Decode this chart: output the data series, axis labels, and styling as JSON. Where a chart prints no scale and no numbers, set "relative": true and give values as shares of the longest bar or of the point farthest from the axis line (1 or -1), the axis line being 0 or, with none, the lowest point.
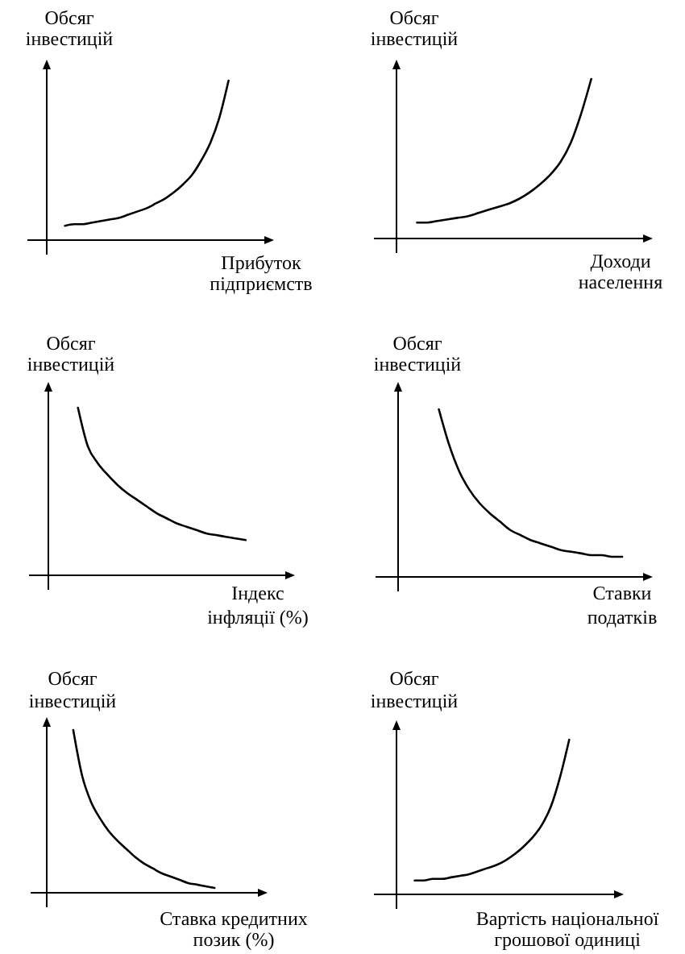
{
  "chart_data": [
    {
      "type": "line",
      "relative": true,
      "color": "#000000",
      "ylabel": "Обсяг\nінвестицій",
      "xlabel": "Прибуток\nпідприємств",
      "categories": [
        null,
        null,
        null,
        null,
        null,
        null,
        null,
        null,
        null,
        null,
        null,
        null,
        null,
        null,
        null,
        null,
        null,
        null,
        null,
        null,
        null,
        null,
        null,
        null,
        null,
        null
      ],
      "values": [
        null,
        null,
        0.09,
        0.1,
        0.1,
        0.11,
        0.12,
        0.13,
        0.14,
        0.16,
        0.18,
        0.2,
        0.23,
        0.26,
        0.3,
        0.35,
        0.41,
        0.5,
        0.61,
        0.77,
        1,
        null,
        null,
        null,
        null,
        null
      ]
    },
    {
      "type": "line",
      "relative": true,
      "color": "#000000",
      "ylabel": "Обсяг\nінвестицій",
      "xlabel": "Доходи\nнаселення",
      "categories": [
        null,
        null,
        null,
        null,
        null,
        null,
        null,
        null,
        null,
        null,
        null,
        null,
        null,
        null,
        null,
        null,
        null,
        null,
        null,
        null,
        null,
        null,
        null,
        null,
        null,
        null
      ],
      "values": [
        null,
        null,
        0.1,
        0.1,
        0.11,
        0.12,
        0.13,
        0.14,
        0.16,
        0.18,
        0.2,
        0.22,
        0.25,
        0.29,
        0.34,
        0.4,
        0.48,
        0.6,
        0.78,
        1,
        null,
        null,
        null,
        null,
        null,
        null
      ]
    },
    {
      "type": "line",
      "relative": true,
      "color": "#000000",
      "ylabel": "Обсяг\nінвестицій",
      "xlabel": "Індекс\nінфляції (%)",
      "categories": [
        null,
        null,
        null,
        null,
        null,
        null,
        null,
        null,
        null,
        null,
        null,
        null,
        null,
        null,
        null,
        null,
        null,
        null,
        null,
        null,
        null,
        null,
        null,
        null,
        null,
        null
      ],
      "values": [
        null,
        null,
        null,
        1,
        0.77,
        0.67,
        0.6,
        0.54,
        0.49,
        0.45,
        0.41,
        0.37,
        0.34,
        0.31,
        0.29,
        0.27,
        0.25,
        0.24,
        0.23,
        0.22,
        0.21,
        null,
        null,
        null,
        null,
        null
      ]
    },
    {
      "type": "line",
      "relative": true,
      "color": "#000000",
      "ylabel": "Обсяг\nінвестицій",
      "xlabel": "Ставки\nподатків",
      "categories": [
        null,
        null,
        null,
        null,
        null,
        null,
        null,
        null,
        null,
        null,
        null,
        null,
        null,
        null,
        null,
        null,
        null,
        null,
        null,
        null,
        null,
        null,
        null,
        null,
        null,
        null
      ],
      "values": [
        null,
        null,
        null,
        null,
        1,
        0.79,
        0.63,
        0.52,
        0.44,
        0.38,
        0.33,
        0.28,
        0.25,
        0.22,
        0.2,
        0.18,
        0.16,
        0.15,
        0.14,
        0.13,
        0.13,
        0.12,
        0.12,
        null,
        null,
        null
      ]
    },
    {
      "type": "line",
      "relative": true,
      "color": "#000000",
      "ylabel": "Обсяг\nінвестицій",
      "xlabel": "Ставка кредитних\nпозик (%)",
      "categories": [
        null,
        null,
        null,
        null,
        null,
        null,
        null,
        null,
        null,
        null,
        null,
        null,
        null,
        null,
        null,
        null,
        null,
        null,
        null,
        null,
        null,
        null,
        null,
        null,
        null,
        null
      ],
      "values": [
        null,
        null,
        null,
        1,
        0.72,
        0.56,
        0.46,
        0.38,
        0.32,
        0.27,
        0.22,
        0.18,
        0.15,
        0.12,
        0.1,
        0.08,
        0.06,
        0.05,
        0.04,
        0.03,
        null,
        null,
        null,
        null,
        null,
        null
      ]
    },
    {
      "type": "line",
      "relative": true,
      "color": "#000000",
      "ylabel": "Обсяг\nінвестицій",
      "xlabel": "Вартість національної\nгрошової одиниці",
      "categories": [
        null,
        null,
        null,
        null,
        null,
        null,
        null,
        null,
        null,
        null,
        null,
        null,
        null,
        null,
        null,
        null,
        null,
        null,
        null,
        null,
        null,
        null,
        null,
        null,
        null,
        null
      ],
      "values": [
        null,
        null,
        0.09,
        0.09,
        0.1,
        0.1,
        0.11,
        0.12,
        0.13,
        0.15,
        0.17,
        0.19,
        0.22,
        0.26,
        0.31,
        0.37,
        0.45,
        0.57,
        0.76,
        1,
        null,
        null,
        null,
        null,
        null,
        null
      ]
    }
  ]
}
